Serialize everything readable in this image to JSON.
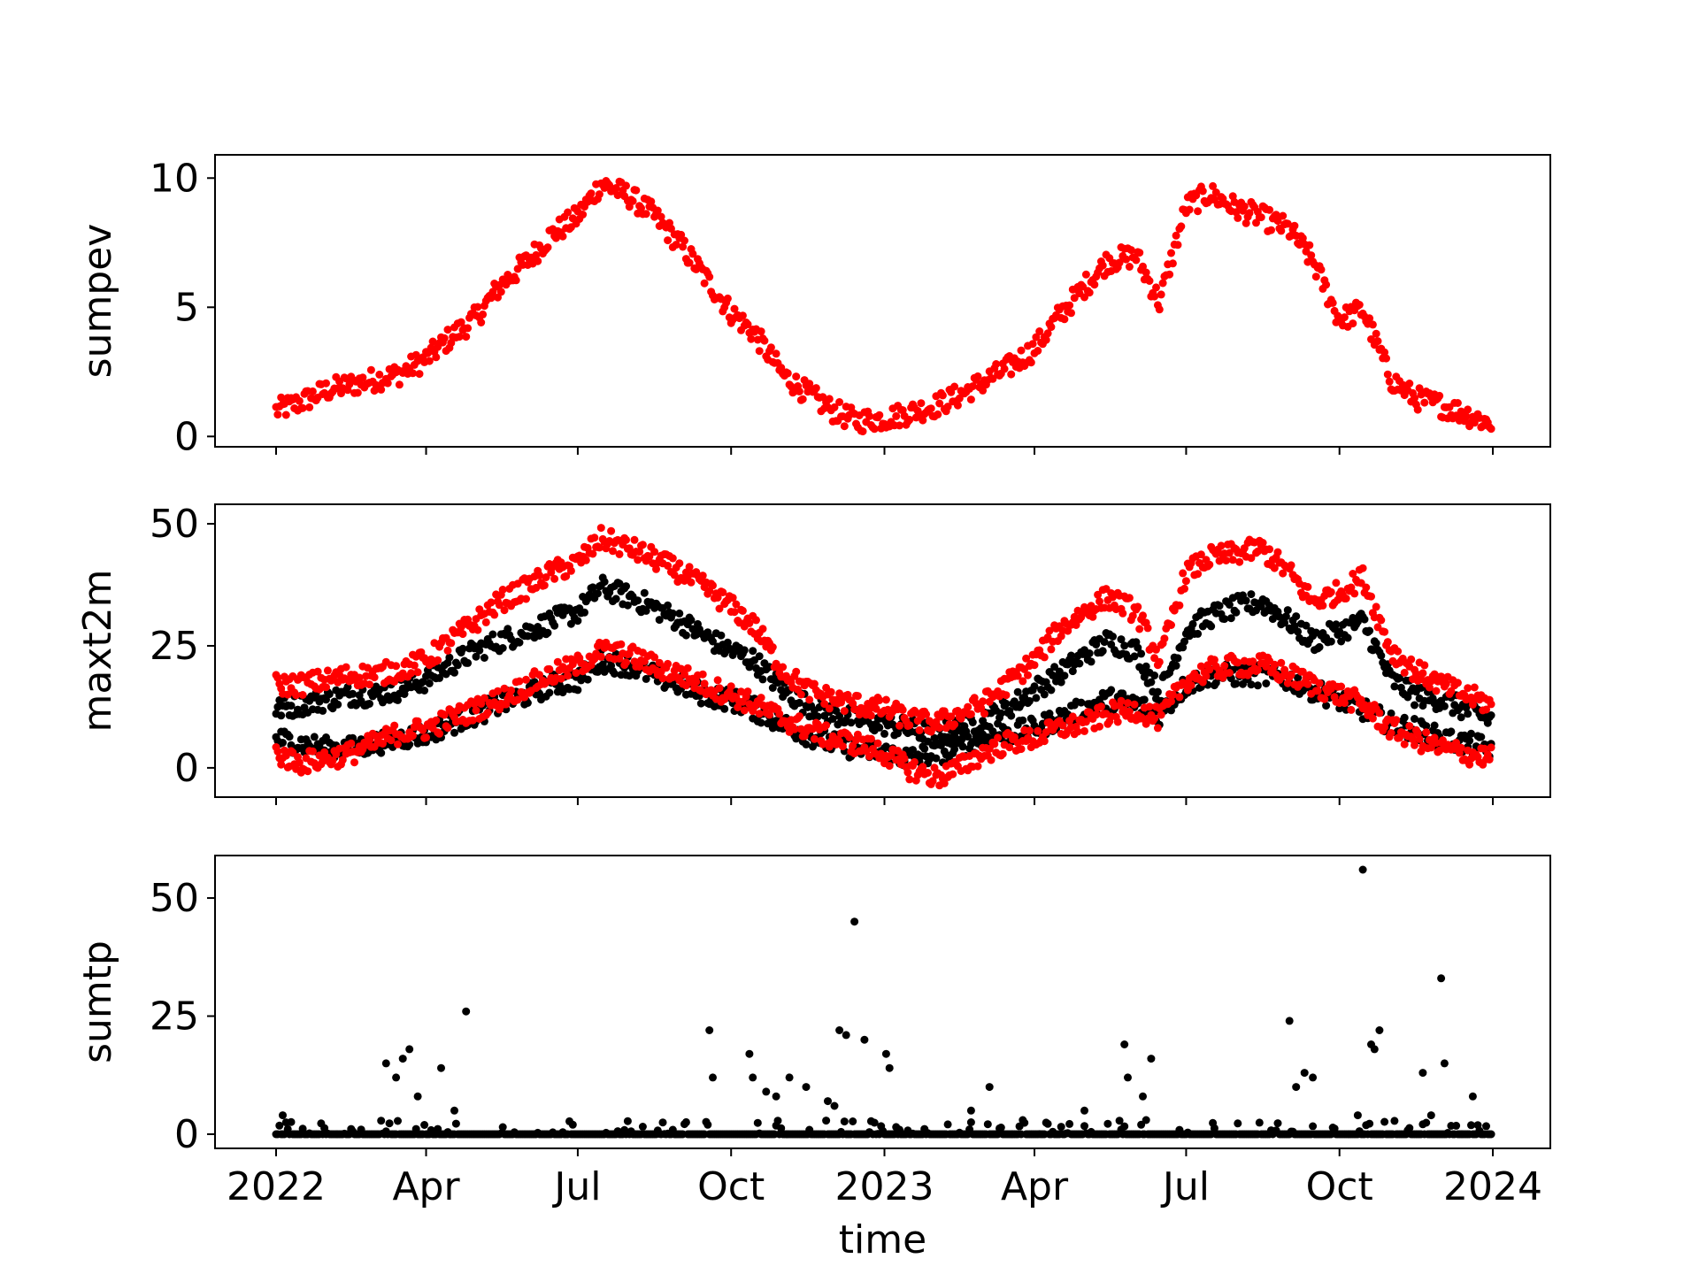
{
  "chart_data": [
    {
      "type": "scatter",
      "panel": "top",
      "ylabel": "sumpev",
      "ylim": [
        -0.4,
        10.9
      ],
      "yticks": [
        0,
        5,
        10
      ],
      "ytick_labels": [
        "0",
        "5",
        "10"
      ],
      "xtick_labels": [],
      "xlabel": "",
      "series": [
        {
          "color": "#ff0000",
          "x": [
            "2022-01-01",
            "2022-01-15",
            "2022-02-01",
            "2022-02-15",
            "2022-03-01",
            "2022-03-15",
            "2022-04-01",
            "2022-04-15",
            "2022-05-01",
            "2022-05-15",
            "2022-06-01",
            "2022-06-15",
            "2022-07-01",
            "2022-07-15",
            "2022-08-01",
            "2022-08-15",
            "2022-09-01",
            "2022-09-15",
            "2022-10-01",
            "2022-10-15",
            "2022-11-01",
            "2022-11-15",
            "2022-12-01",
            "2022-12-15",
            "2023-01-01",
            "2023-01-15",
            "2023-02-01",
            "2023-02-15",
            "2023-03-01",
            "2023-03-15",
            "2023-04-01",
            "2023-04-15",
            "2023-05-01",
            "2023-05-15",
            "2023-06-01",
            "2023-06-15",
            "2023-07-01",
            "2023-07-15",
            "2023-08-01",
            "2023-08-15",
            "2023-09-01",
            "2023-09-15",
            "2023-10-01",
            "2023-10-15",
            "2023-11-01",
            "2023-11-15",
            "2023-12-01",
            "2023-12-15",
            "2023-12-31"
          ],
          "y": [
            1.0,
            1.3,
            1.8,
            2.0,
            2.2,
            2.4,
            3.0,
            3.8,
            4.6,
            5.8,
            6.8,
            7.8,
            8.5,
            9.8,
            9.3,
            8.6,
            7.4,
            6.2,
            4.8,
            4.0,
            2.4,
            1.7,
            1.0,
            0.6,
            0.7,
            0.9,
            1.2,
            1.6,
            2.1,
            2.6,
            3.4,
            4.6,
            5.8,
            6.8,
            7.0,
            5.2,
            8.9,
            9.4,
            8.8,
            8.5,
            8.0,
            6.8,
            4.5,
            4.9,
            2.2,
            1.5,
            1.2,
            0.9,
            0.5
          ]
        }
      ]
    },
    {
      "type": "scatter",
      "panel": "middle",
      "ylabel": "maxt2m",
      "ylim": [
        -6,
        54
      ],
      "yticks": [
        0,
        25,
        50
      ],
      "ytick_labels": [
        "0",
        "25",
        "50"
      ],
      "xtick_labels": [],
      "xlabel": "",
      "series": [
        {
          "color": "#000000",
          "x": [
            "2022-01-01",
            "2022-01-15",
            "2022-02-01",
            "2022-02-15",
            "2022-03-01",
            "2022-03-15",
            "2022-04-01",
            "2022-04-15",
            "2022-05-01",
            "2022-05-15",
            "2022-06-01",
            "2022-06-15",
            "2022-07-01",
            "2022-07-15",
            "2022-08-01",
            "2022-08-15",
            "2022-09-01",
            "2022-09-15",
            "2022-10-01",
            "2022-10-15",
            "2022-11-01",
            "2022-11-15",
            "2022-12-01",
            "2022-12-15",
            "2023-01-01",
            "2023-01-15",
            "2023-02-01",
            "2023-02-15",
            "2023-03-01",
            "2023-03-15",
            "2023-04-01",
            "2023-04-15",
            "2023-05-01",
            "2023-05-15",
            "2023-06-01",
            "2023-06-15",
            "2023-07-01",
            "2023-07-15",
            "2023-08-01",
            "2023-08-15",
            "2023-09-01",
            "2023-09-15",
            "2023-10-01",
            "2023-10-15",
            "2023-11-01",
            "2023-11-15",
            "2023-12-01",
            "2023-12-15",
            "2023-12-31"
          ],
          "y": [
            12,
            13,
            14,
            15,
            15,
            16,
            18,
            21,
            24,
            26,
            28,
            30,
            32,
            37,
            35,
            33,
            30,
            27,
            24,
            22,
            16,
            13,
            11,
            10,
            9,
            8,
            7,
            8,
            10,
            12,
            16,
            19,
            23,
            26,
            24,
            15,
            28,
            31,
            33,
            34,
            30,
            26,
            28,
            30,
            18,
            15,
            14,
            12,
            10
          ]
        },
        {
          "color": "#000000",
          "x": [
            "2022-01-01",
            "2022-01-15",
            "2022-02-01",
            "2022-02-15",
            "2022-03-01",
            "2022-03-15",
            "2022-04-01",
            "2022-04-15",
            "2022-05-01",
            "2022-05-15",
            "2022-06-01",
            "2022-06-15",
            "2022-07-01",
            "2022-07-15",
            "2022-08-01",
            "2022-08-15",
            "2022-09-01",
            "2022-09-15",
            "2022-10-01",
            "2022-10-15",
            "2022-11-01",
            "2022-11-15",
            "2022-12-01",
            "2022-12-15",
            "2023-01-01",
            "2023-01-15",
            "2023-02-01",
            "2023-02-15",
            "2023-03-01",
            "2023-03-15",
            "2023-04-01",
            "2023-04-15",
            "2023-05-01",
            "2023-05-15",
            "2023-06-01",
            "2023-06-15",
            "2023-07-01",
            "2023-07-15",
            "2023-08-01",
            "2023-08-15",
            "2023-09-01",
            "2023-09-15",
            "2023-10-01",
            "2023-10-15",
            "2023-11-01",
            "2023-11-15",
            "2023-12-01",
            "2023-12-15",
            "2023-12-31"
          ],
          "y": [
            6,
            5,
            4,
            4,
            5,
            6,
            7,
            9,
            11,
            13,
            15,
            17,
            18,
            22,
            21,
            19,
            17,
            15,
            14,
            12,
            9,
            7,
            5,
            4,
            3,
            2,
            3,
            4,
            6,
            7,
            8,
            10,
            12,
            14,
            13,
            11,
            17,
            19,
            19,
            19,
            18,
            16,
            14,
            12,
            9,
            8,
            6,
            5,
            4
          ]
        },
        {
          "color": "#ff0000",
          "x": [
            "2022-01-01",
            "2022-01-15",
            "2022-02-01",
            "2022-02-15",
            "2022-03-01",
            "2022-03-15",
            "2022-04-01",
            "2022-04-15",
            "2022-05-01",
            "2022-05-15",
            "2022-06-01",
            "2022-06-15",
            "2022-07-01",
            "2022-07-15",
            "2022-08-01",
            "2022-08-15",
            "2022-09-01",
            "2022-09-15",
            "2022-10-01",
            "2022-10-15",
            "2022-11-01",
            "2022-11-15",
            "2022-12-01",
            "2022-12-15",
            "2023-01-01",
            "2023-01-15",
            "2023-02-01",
            "2023-02-15",
            "2023-03-01",
            "2023-03-15",
            "2023-04-01",
            "2023-04-15",
            "2023-05-01",
            "2023-05-15",
            "2023-06-01",
            "2023-06-15",
            "2023-07-01",
            "2023-07-15",
            "2023-08-01",
            "2023-08-15",
            "2023-09-01",
            "2023-09-15",
            "2023-10-01",
            "2023-10-15",
            "2023-11-01",
            "2023-11-15",
            "2023-12-01",
            "2023-12-15",
            "2023-12-31"
          ],
          "y": [
            17,
            17,
            18,
            19,
            19,
            20,
            22,
            26,
            30,
            34,
            37,
            40,
            42,
            47,
            45,
            43,
            40,
            37,
            33,
            29,
            20,
            16,
            14,
            13,
            12,
            10,
            9,
            11,
            13,
            17,
            22,
            28,
            32,
            35,
            32,
            22,
            40,
            43,
            44,
            45,
            40,
            34,
            36,
            39,
            24,
            20,
            17,
            15,
            13
          ]
        },
        {
          "color": "#ff0000",
          "x": [
            "2022-01-01",
            "2022-01-15",
            "2022-02-01",
            "2022-02-15",
            "2022-03-01",
            "2022-03-15",
            "2022-04-01",
            "2022-04-15",
            "2022-05-01",
            "2022-05-15",
            "2022-06-01",
            "2022-06-15",
            "2022-07-01",
            "2022-07-15",
            "2022-08-01",
            "2022-08-15",
            "2022-09-01",
            "2022-09-15",
            "2022-10-01",
            "2022-10-15",
            "2022-11-01",
            "2022-11-15",
            "2022-12-01",
            "2022-12-15",
            "2023-01-01",
            "2023-01-15",
            "2023-02-01",
            "2023-02-15",
            "2023-03-01",
            "2023-03-15",
            "2023-04-01",
            "2023-04-15",
            "2023-05-01",
            "2023-05-15",
            "2023-06-01",
            "2023-06-15",
            "2023-07-01",
            "2023-07-15",
            "2023-08-01",
            "2023-08-15",
            "2023-09-01",
            "2023-09-15",
            "2023-10-01",
            "2023-10-15",
            "2023-11-01",
            "2023-11-15",
            "2023-12-01",
            "2023-12-15",
            "2023-12-31"
          ],
          "y": [
            3,
            1,
            2,
            3,
            5,
            7,
            8,
            10,
            12,
            14,
            17,
            19,
            21,
            24,
            23,
            21,
            19,
            17,
            15,
            13,
            10,
            8,
            6,
            5,
            3,
            0,
            -2,
            0,
            3,
            5,
            6,
            8,
            9,
            11,
            12,
            10,
            18,
            20,
            21,
            21,
            19,
            17,
            15,
            13,
            8,
            6,
            4,
            3,
            2
          ]
        }
      ]
    },
    {
      "type": "scatter",
      "panel": "bottom",
      "ylabel": "sumtp",
      "xlabel": "time",
      "ylim": [
        -3,
        59
      ],
      "yticks": [
        0,
        25,
        50
      ],
      "ytick_labels": [
        "0",
        "25",
        "50"
      ],
      "xtick_labels": [
        "2022",
        "Apr",
        "Jul",
        "Oct",
        "2023",
        "Apr",
        "Jul",
        "Oct",
        "2024"
      ],
      "xtick_dates": [
        "2022-01-01",
        "2022-04-01",
        "2022-07-01",
        "2022-10-01",
        "2023-01-01",
        "2023-04-01",
        "2023-07-01",
        "2023-10-01",
        "2024-01-01"
      ],
      "series": [
        {
          "color": "#000000",
          "note_baseline": 0,
          "x": [
            "2022-01-05",
            "2022-03-08",
            "2022-03-14",
            "2022-03-18",
            "2022-03-22",
            "2022-03-27",
            "2022-04-10",
            "2022-04-18",
            "2022-04-25",
            "2022-06-28",
            "2022-09-18",
            "2022-09-20",
            "2022-10-12",
            "2022-10-14",
            "2022-10-22",
            "2022-10-28",
            "2022-11-05",
            "2022-11-15",
            "2022-11-28",
            "2022-12-02",
            "2022-12-05",
            "2022-12-09",
            "2022-12-14",
            "2022-12-20",
            "2023-01-02",
            "2023-01-04",
            "2023-02-22",
            "2023-03-05",
            "2023-05-01",
            "2023-05-25",
            "2023-05-27",
            "2023-06-05",
            "2023-06-10",
            "2023-09-01",
            "2023-09-05",
            "2023-09-10",
            "2023-09-15",
            "2023-10-12",
            "2023-10-15",
            "2023-10-20",
            "2023-10-22",
            "2023-10-25",
            "2023-11-20",
            "2023-11-25",
            "2023-12-01",
            "2023-12-03",
            "2023-12-20"
          ],
          "y": [
            4,
            15,
            12,
            16,
            18,
            8,
            14,
            5,
            26,
            2,
            22,
            12,
            17,
            12,
            9,
            8,
            12,
            10,
            7,
            6,
            22,
            21,
            45,
            20,
            17,
            14,
            5,
            10,
            5,
            19,
            12,
            8,
            16,
            24,
            10,
            13,
            12,
            4,
            56,
            19,
            18,
            22,
            13,
            4,
            33,
            15,
            8
          ]
        }
      ]
    }
  ]
}
